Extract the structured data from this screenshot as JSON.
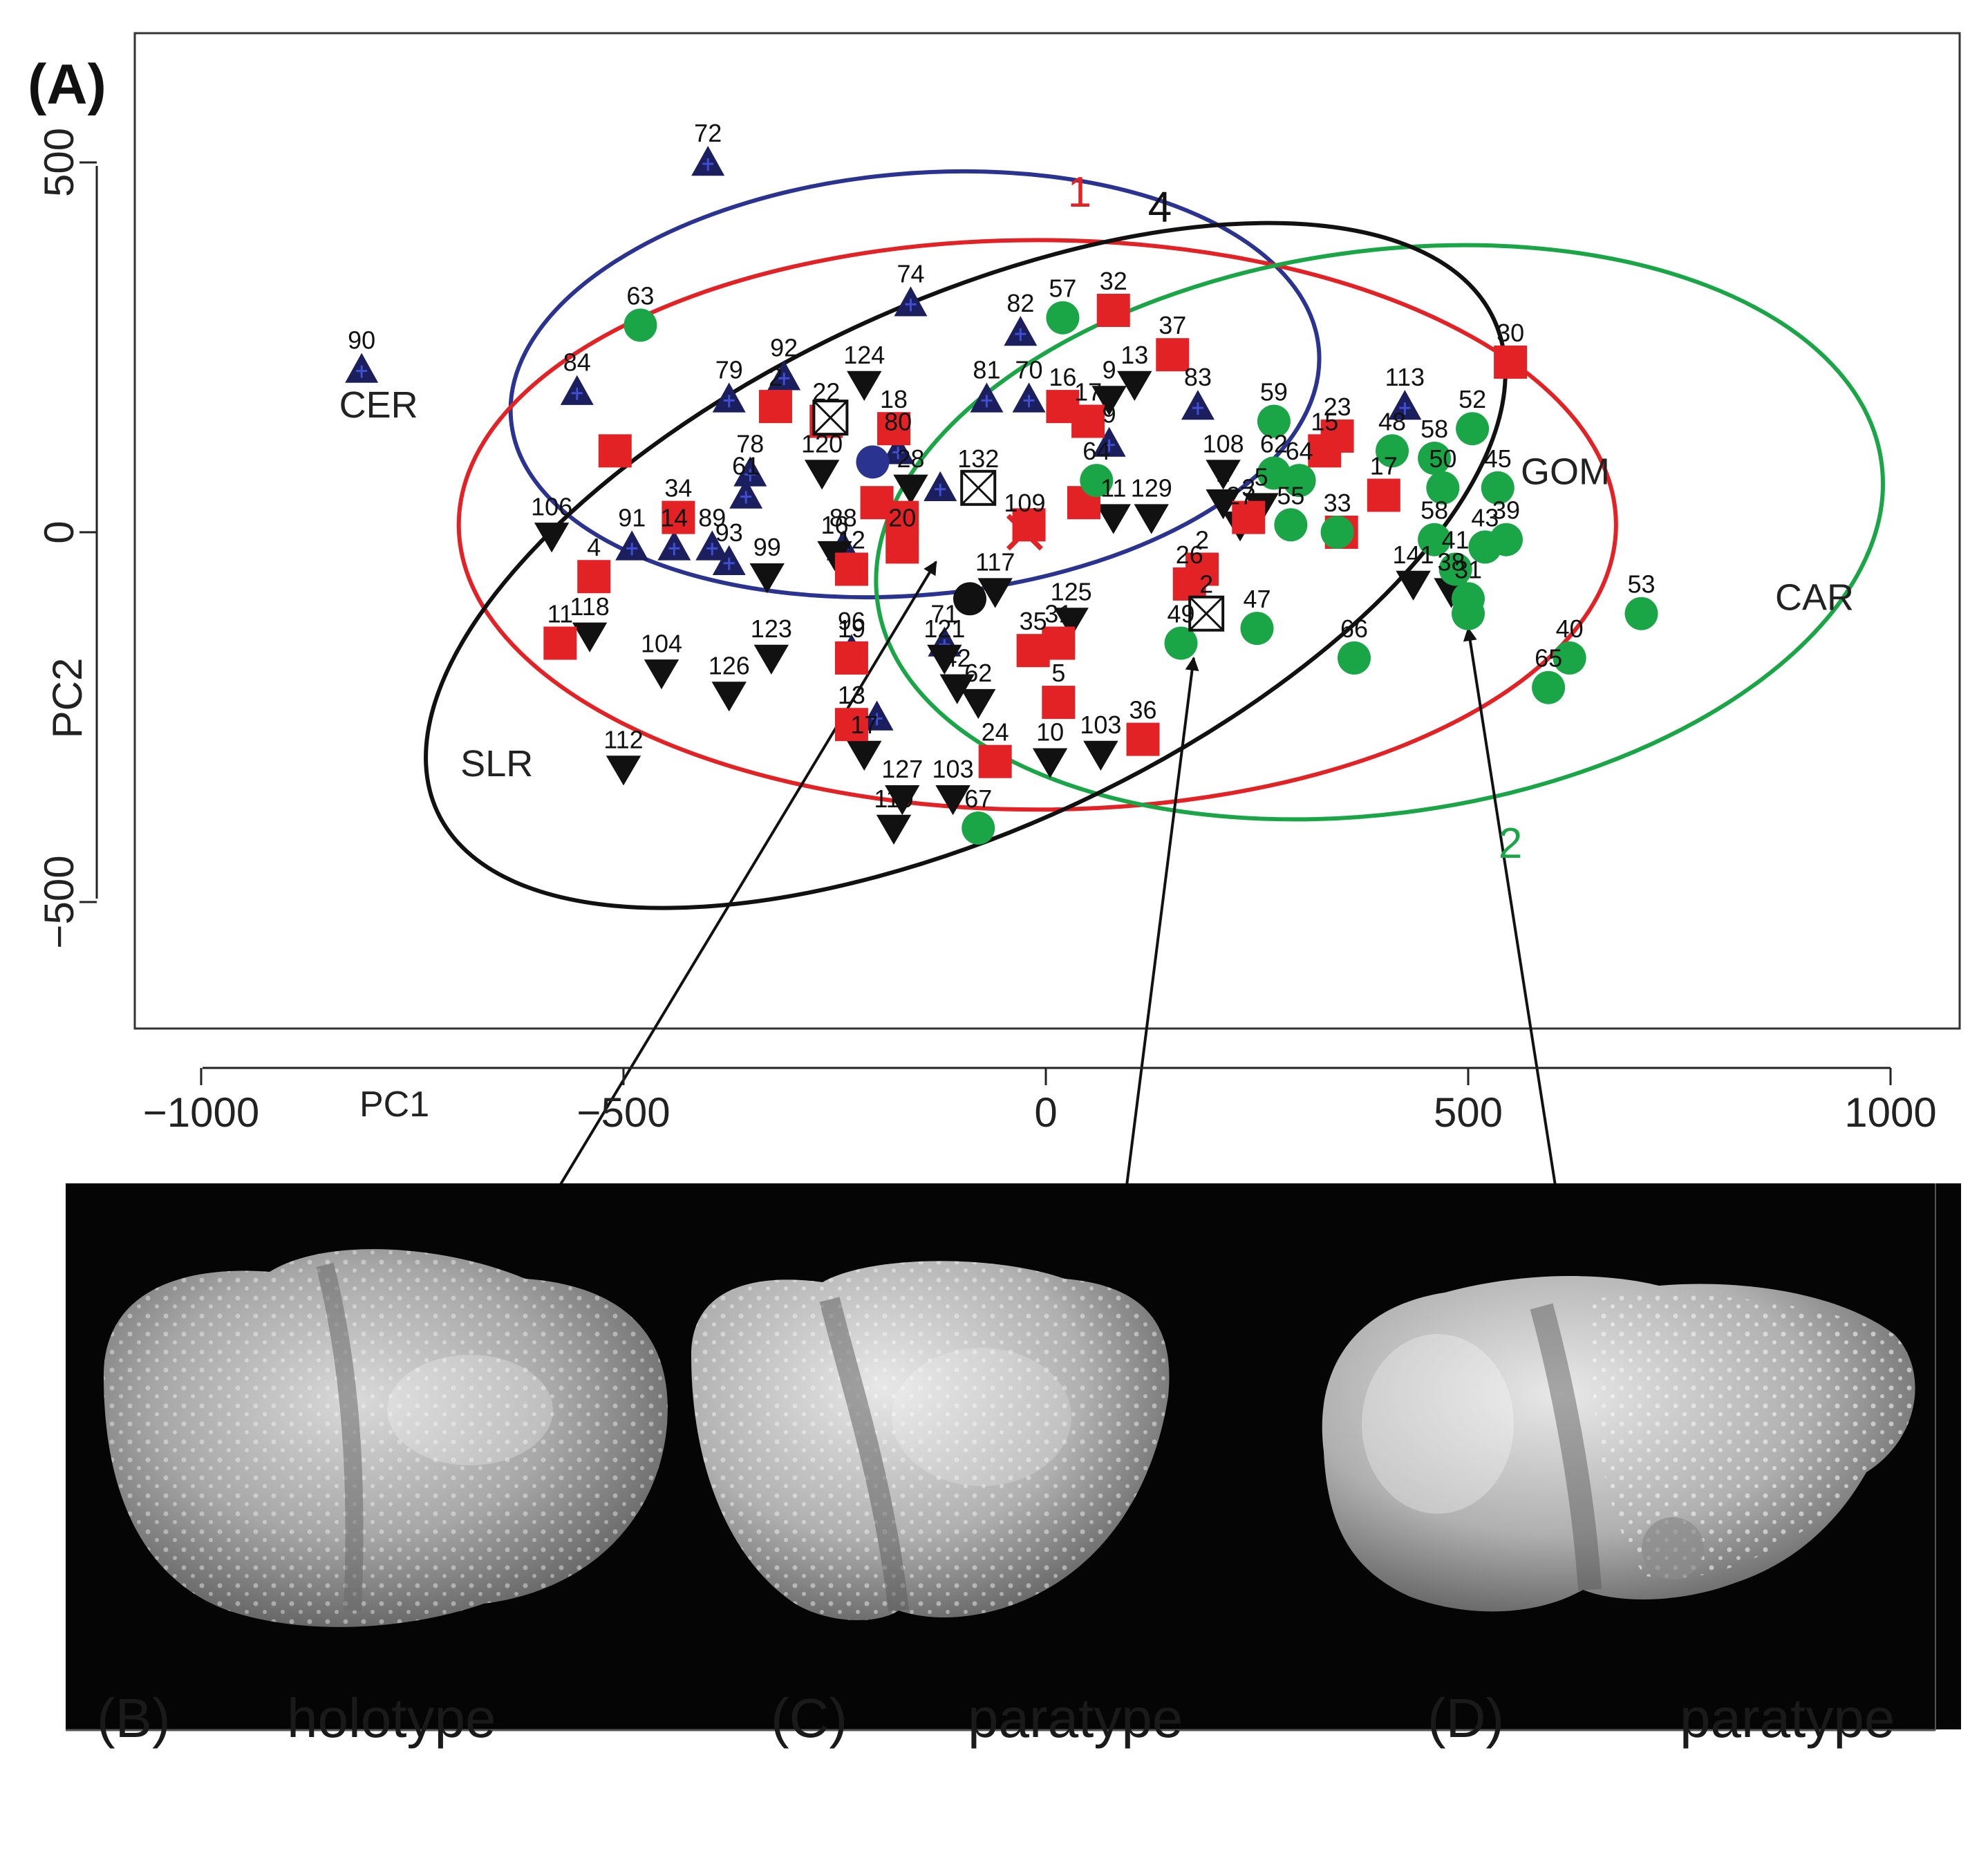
{
  "panel_labels": {
    "a": "(A)",
    "b": "(B)",
    "c": "(C)",
    "d": "(D)"
  },
  "captions": {
    "b": "holotype",
    "c": "paratype",
    "d": "paratype"
  },
  "colors": {
    "red": "#e32226",
    "blue": "#2a3390",
    "green": "#1aa646",
    "navy": "#1c1f5e",
    "black": "#111111",
    "image_bg": "#050505"
  },
  "chart_data": {
    "type": "scatter",
    "xlabel": "PC1",
    "ylabel": "PC2",
    "xlim": [
      -1000,
      1000
    ],
    "ylim": [
      -650,
      700
    ],
    "xticks": [
      -1000,
      -500,
      0,
      500,
      1000
    ],
    "yticks": [
      -500,
      0,
      500
    ],
    "grid": false,
    "group_labels": [
      {
        "text": "CER",
        "x": -790,
        "y": 155
      },
      {
        "text": "SLR",
        "x": -650,
        "y": -330
      },
      {
        "text": "GOM",
        "x": 615,
        "y": 65
      },
      {
        "text": "CAR",
        "x": 910,
        "y": -105
      }
    ],
    "ellipse_numbers": [
      {
        "text": "1",
        "x": 40,
        "y": 440,
        "color": "red"
      },
      {
        "text": "4",
        "x": 135,
        "y": 420,
        "color": "black"
      },
      {
        "text": "2",
        "x": 550,
        "y": -440,
        "color": "green"
      }
    ],
    "ellipses": [
      {
        "group": "CER",
        "color": "blue",
        "cx": -155,
        "cy": 200,
        "rx": 480,
        "ry": 285,
        "angle": -5
      },
      {
        "group": "1",
        "color": "red",
        "cx": -10,
        "cy": 10,
        "rx": 685,
        "ry": 385,
        "angle": 0
      },
      {
        "group": "GOM/CAR",
        "color": "green",
        "cx": 395,
        "cy": 0,
        "rx": 600,
        "ry": 380,
        "angle": -8
      },
      {
        "group": "SLR",
        "color": "black",
        "cx": -95,
        "cy": -45,
        "rx": 690,
        "ry": 355,
        "angle": -25
      }
    ],
    "series": [
      {
        "marker": "triangle-up",
        "color": "navy",
        "points": [
          [
            -810,
            220,
            "90"
          ],
          [
            -400,
            500,
            "72"
          ],
          [
            -555,
            190,
            "84"
          ],
          [
            -375,
            180,
            "79"
          ],
          [
            -310,
            210,
            "92"
          ],
          [
            -160,
            310,
            "74"
          ],
          [
            -30,
            270,
            "82"
          ],
          [
            -70,
            180,
            "81"
          ],
          [
            -20,
            180,
            "70"
          ],
          [
            -350,
            80,
            "78"
          ],
          [
            -355,
            50,
            "61"
          ],
          [
            -175,
            110,
            "80"
          ],
          [
            -490,
            -20,
            "91"
          ],
          [
            -440,
            -20,
            "14"
          ],
          [
            -395,
            -20,
            "89"
          ],
          [
            -375,
            -40,
            "93"
          ],
          [
            -240,
            -20,
            "88"
          ],
          [
            -230,
            -160,
            "96"
          ],
          [
            -200,
            -250,
            ""
          ],
          [
            -120,
            -150,
            "71"
          ],
          [
            -125,
            60,
            ""
          ],
          [
            180,
            170,
            "83"
          ],
          [
            425,
            170,
            "113"
          ],
          [
            75,
            120,
            "9"
          ]
        ]
      },
      {
        "marker": "triangle-down",
        "color": "black",
        "points": [
          [
            -585,
            -5,
            "106"
          ],
          [
            -540,
            -140,
            "118"
          ],
          [
            -455,
            -190,
            "104"
          ],
          [
            -375,
            -220,
            "126"
          ],
          [
            -325,
            -170,
            "123"
          ],
          [
            -330,
            -60,
            "99"
          ],
          [
            -500,
            -320,
            "112"
          ],
          [
            -215,
            -300,
            "17"
          ],
          [
            -180,
            -400,
            "119"
          ],
          [
            -170,
            -360,
            "127"
          ],
          [
            -110,
            -360,
            "103"
          ],
          [
            -80,
            -230,
            "62"
          ],
          [
            -60,
            -80,
            "117"
          ],
          [
            5,
            -310,
            "10"
          ],
          [
            65,
            -300,
            "103"
          ],
          [
            30,
            -120,
            "125"
          ],
          [
            -215,
            200,
            "124"
          ],
          [
            -265,
            80,
            "120"
          ],
          [
            -250,
            -30,
            "16"
          ],
          [
            -160,
            60,
            "28"
          ],
          [
            105,
            200,
            "13"
          ],
          [
            125,
            20,
            "129"
          ],
          [
            80,
            20,
            "11"
          ],
          [
            210,
            80,
            "108"
          ],
          [
            210,
            40,
            "2"
          ],
          [
            255,
            35,
            "5"
          ],
          [
            230,
            10,
            "27"
          ],
          [
            435,
            -70,
            "141"
          ],
          [
            480,
            -80,
            "38"
          ],
          [
            75,
            180,
            "9"
          ],
          [
            -120,
            -170,
            "121"
          ],
          [
            -105,
            -210,
            "42"
          ]
        ]
      },
      {
        "marker": "square",
        "color": "red",
        "points": [
          [
            -510,
            110,
            ""
          ],
          [
            -535,
            -60,
            "4"
          ],
          [
            -575,
            -150,
            "11"
          ],
          [
            -435,
            20,
            "34"
          ],
          [
            -320,
            170,
            "2"
          ],
          [
            -260,
            150,
            "22"
          ],
          [
            -180,
            140,
            "18"
          ],
          [
            -200,
            40,
            ""
          ],
          [
            -170,
            20,
            ""
          ],
          [
            -170,
            -20,
            "20"
          ],
          [
            -230,
            -50,
            "12"
          ],
          [
            -230,
            -170,
            "19"
          ],
          [
            -230,
            -260,
            "13"
          ],
          [
            -20,
            10,
            ""
          ],
          [
            -15,
            -160,
            "35"
          ],
          [
            15,
            -150,
            "31"
          ],
          [
            15,
            -230,
            "5"
          ],
          [
            -60,
            -310,
            "24"
          ],
          [
            80,
            300,
            "32"
          ],
          [
            150,
            240,
            "37"
          ],
          [
            20,
            170,
            "16"
          ],
          [
            50,
            150,
            "17"
          ],
          [
            45,
            40,
            ""
          ],
          [
            170,
            -70,
            "26"
          ],
          [
            185,
            -50,
            "2"
          ],
          [
            240,
            20,
            "3"
          ],
          [
            330,
            110,
            "15"
          ],
          [
            345,
            130,
            "23"
          ],
          [
            400,
            50,
            "17"
          ],
          [
            550,
            230,
            "30"
          ],
          [
            115,
            -280,
            "36"
          ],
          [
            350,
            0,
            ""
          ]
        ]
      },
      {
        "marker": "circle",
        "color": "green",
        "points": [
          [
            -480,
            280,
            "63"
          ],
          [
            20,
            290,
            "57"
          ],
          [
            270,
            150,
            "59"
          ],
          [
            270,
            80,
            "62"
          ],
          [
            300,
            70,
            "64"
          ],
          [
            290,
            10,
            "55"
          ],
          [
            345,
            0,
            "33"
          ],
          [
            410,
            110,
            "48"
          ],
          [
            460,
            100,
            "58"
          ],
          [
            470,
            60,
            "50"
          ],
          [
            460,
            -10,
            "58"
          ],
          [
            505,
            140,
            "52"
          ],
          [
            535,
            60,
            "45"
          ],
          [
            520,
            -20,
            "43"
          ],
          [
            545,
            -10,
            "39"
          ],
          [
            485,
            -50,
            "41"
          ],
          [
            500,
            -90,
            "31"
          ],
          [
            500,
            -110,
            ""
          ],
          [
            250,
            -130,
            "47"
          ],
          [
            160,
            -150,
            "49"
          ],
          [
            365,
            -170,
            "66"
          ],
          [
            620,
            -170,
            "40"
          ],
          [
            595,
            -210,
            "65"
          ],
          [
            705,
            -110,
            "53"
          ],
          [
            -80,
            -400,
            "67"
          ],
          [
            60,
            70,
            "64"
          ]
        ]
      },
      {
        "marker": "circle",
        "color": "blue",
        "points": [
          [
            -205,
            95,
            ""
          ]
        ]
      },
      {
        "marker": "circle",
        "color": "black",
        "points": [
          [
            -90,
            -90,
            ""
          ]
        ]
      },
      {
        "marker": "boxed-x",
        "color": "black",
        "points": [
          [
            -80,
            60,
            "132"
          ],
          [
            -255,
            155,
            ""
          ],
          [
            190,
            -110,
            "2"
          ]
        ]
      },
      {
        "marker": "x",
        "color": "red",
        "points": [
          [
            -25,
            0,
            "109"
          ]
        ]
      }
    ],
    "highlight_arrows": [
      {
        "from": [
          -130,
          -40
        ],
        "to_panel": "b"
      },
      {
        "from": [
          175,
          -170
        ],
        "to_panel": "c"
      },
      {
        "from": [
          500,
          -130
        ],
        "to_panel": "d"
      }
    ]
  }
}
